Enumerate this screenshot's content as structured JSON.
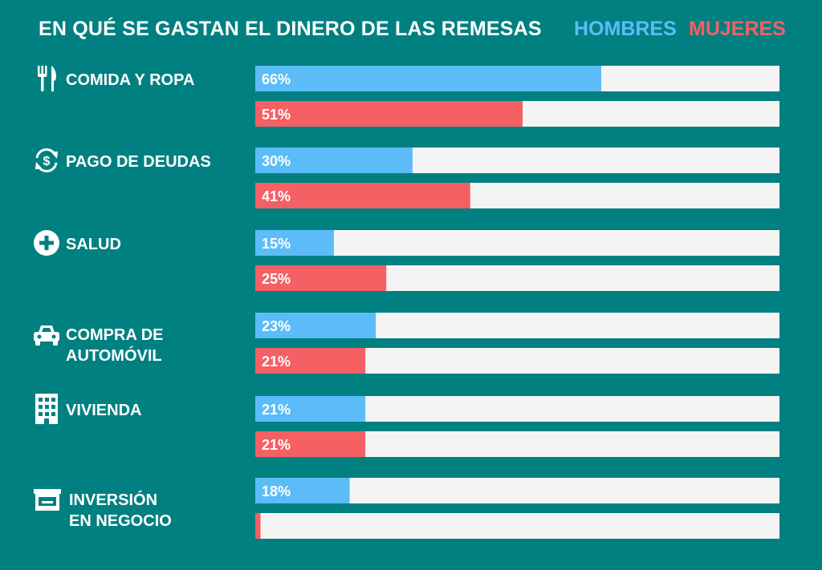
{
  "chart_data": {
    "type": "bar",
    "orientation": "horizontal",
    "title": "EN QUÉ SE GASTAN EL DINERO DE LAS REMESAS",
    "xlim": [
      0,
      100
    ],
    "grid": false,
    "legend_placement": "top-right",
    "categories": [
      {
        "label_lines": [
          "COMIDA Y ROPA"
        ],
        "icon": "fork-knife-icon"
      },
      {
        "label_lines": [
          "PAGO DE DEUDAS"
        ],
        "icon": "dollar-cycle-icon"
      },
      {
        "label_lines": [
          "SALUD"
        ],
        "icon": "health-cross-icon"
      },
      {
        "label_lines": [
          "COMPRA DE",
          "AUTOMÓVIL"
        ],
        "icon": "car-icon"
      },
      {
        "label_lines": [
          "VIVIENDA"
        ],
        "icon": "building-icon"
      },
      {
        "label_lines": [
          "INVERSIÓN",
          "EN NEGOCIO"
        ],
        "icon": "store-icon"
      }
    ],
    "series": [
      {
        "name": "HOMBRES",
        "color": "#5bbcf8",
        "values": [
          66,
          30,
          15,
          23,
          21,
          18
        ],
        "labels": [
          "66%",
          "30%",
          "15%",
          "23%",
          "21%",
          "18%"
        ]
      },
      {
        "name": "MUJERES",
        "color": "#f46064",
        "values": [
          51,
          41,
          25,
          21,
          21,
          1
        ],
        "labels": [
          "51%",
          "41%",
          "25%",
          "21%",
          "21%",
          ""
        ]
      }
    ],
    "track_color": "#f4f4f5"
  }
}
